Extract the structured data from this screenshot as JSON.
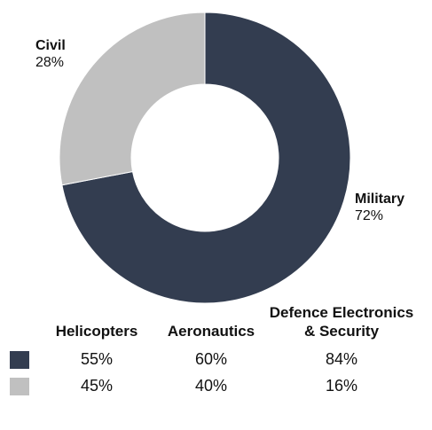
{
  "chart_data": {
    "type": "pie",
    "style": "donut",
    "slices": [
      {
        "label": "Military",
        "value": 72,
        "pct_label": "72%",
        "color": "#333d50"
      },
      {
        "label": "Civil",
        "value": 28,
        "pct_label": "28%",
        "color": "#c0c0c0"
      }
    ],
    "breakdown_table": {
      "columns": [
        "Helicopters",
        "Aeronautics",
        "Defence Electronics & Security"
      ],
      "rows": [
        {
          "color": "#333d50",
          "values": [
            "55%",
            "60%",
            "84%"
          ]
        },
        {
          "color": "#c0c0c0",
          "values": [
            "45%",
            "40%",
            "16%"
          ]
        }
      ]
    }
  }
}
